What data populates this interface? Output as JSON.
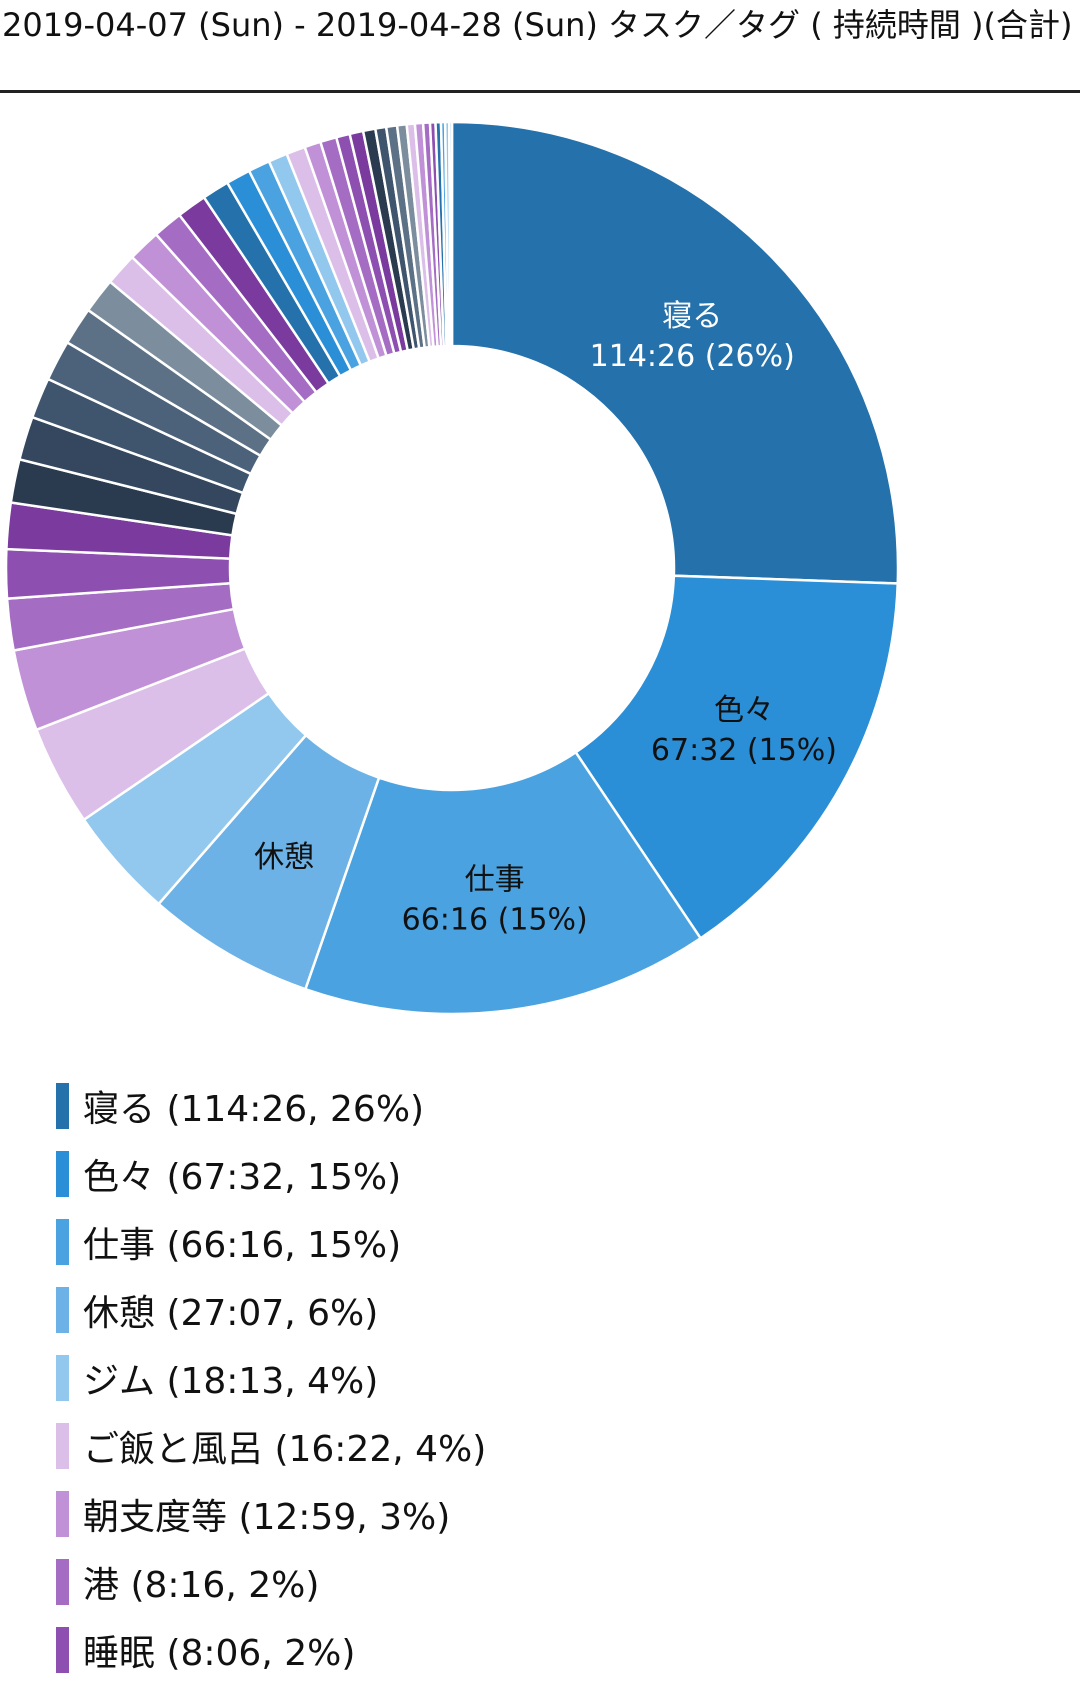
{
  "header": {
    "title": "2019-04-07 (Sun) - 2019-04-28 (Sun) タスク／タグ ( 持続時間 )(合計)"
  },
  "chart_data": {
    "type": "pie",
    "variant": "donut",
    "title": "2019-04-07 (Sun) - 2019-04-28 (Sun) タスク／タグ ( 持続時間 )(合計)",
    "legend_position": "bottom",
    "slices": [
      {
        "label": "寝る",
        "value": 26,
        "duration": "114:26",
        "percent": "26%",
        "color": "#2471ab",
        "show_label": true,
        "show_value": true,
        "label_color": "#ffffff"
      },
      {
        "label": "色々",
        "value": 15.3,
        "duration": "67:32",
        "percent": "15%",
        "color": "#2a8fd6",
        "show_label": true,
        "show_value": true,
        "label_color": "#111111"
      },
      {
        "label": "仕事",
        "value": 15.0,
        "duration": "66:16",
        "percent": "15%",
        "color": "#4aa3e0",
        "show_label": true,
        "show_value": true,
        "label_color": "#111111"
      },
      {
        "label": "休憩",
        "value": 6.2,
        "duration": "27:07",
        "percent": "6%",
        "color": "#6cb2e6",
        "show_label": true,
        "show_value": false,
        "label_color": "#111111"
      },
      {
        "label": "ジム",
        "value": 4.1,
        "duration": "18:13",
        "percent": "4%",
        "color": "#93c8ee",
        "show_label": false
      },
      {
        "label": "ご飯と風呂",
        "value": 3.7,
        "duration": "16:22",
        "percent": "4%",
        "color": "#dcbfe9",
        "show_label": false
      },
      {
        "label": "朝支度等",
        "value": 3.0,
        "duration": "12:59",
        "percent": "3%",
        "color": "#c191d8",
        "show_label": false
      },
      {
        "label": "港",
        "value": 1.9,
        "duration": "8:16",
        "percent": "2%",
        "color": "#a56cc4",
        "show_label": false
      },
      {
        "label": "睡眠",
        "value": 1.8,
        "duration": "8:06",
        "percent": "2%",
        "color": "#8d4fb0",
        "show_label": false
      },
      {
        "value": 1.7,
        "color": "#7a3a9e"
      },
      {
        "value": 1.6,
        "color": "#2b3b4f"
      },
      {
        "value": 1.6,
        "color": "#34475e"
      },
      {
        "value": 1.5,
        "color": "#3f546d"
      },
      {
        "value": 1.5,
        "color": "#4c627b"
      },
      {
        "value": 1.4,
        "color": "#5d7186"
      },
      {
        "value": 1.3,
        "color": "#7c8e9e"
      },
      {
        "value": 1.2,
        "color": "#dcbfe9"
      },
      {
        "value": 1.2,
        "color": "#c191d8"
      },
      {
        "value": 1.1,
        "color": "#a56cc4"
      },
      {
        "value": 1.1,
        "color": "#7a3a9e"
      },
      {
        "value": 1.0,
        "color": "#2471ab"
      },
      {
        "value": 0.9,
        "color": "#2a8fd6"
      },
      {
        "value": 0.8,
        "color": "#4aa3e0"
      },
      {
        "value": 0.7,
        "color": "#93c8ee"
      },
      {
        "value": 0.7,
        "color": "#dcbfe9"
      },
      {
        "value": 0.6,
        "color": "#c191d8"
      },
      {
        "value": 0.6,
        "color": "#a56cc4"
      },
      {
        "value": 0.5,
        "color": "#8d4fb0"
      },
      {
        "value": 0.5,
        "color": "#7a3a9e"
      },
      {
        "value": 0.45,
        "color": "#2b3b4f"
      },
      {
        "value": 0.4,
        "color": "#3f546d"
      },
      {
        "value": 0.4,
        "color": "#5d7186"
      },
      {
        "value": 0.35,
        "color": "#7c8e9e"
      },
      {
        "value": 0.3,
        "color": "#dcbfe9"
      },
      {
        "value": 0.3,
        "color": "#c191d8"
      },
      {
        "value": 0.25,
        "color": "#a56cc4"
      },
      {
        "value": 0.2,
        "color": "#8d4fb0"
      },
      {
        "value": 0.2,
        "color": "#2471ab"
      },
      {
        "value": 0.15,
        "color": "#4aa3e0"
      },
      {
        "value": 0.15,
        "color": "#93c8ee"
      },
      {
        "value": 0.1,
        "color": "#6cb2e6"
      }
    ]
  },
  "legend": [
    {
      "text": "寝る (114:26, 26%)",
      "color": "#2471ab"
    },
    {
      "text": "色々 (67:32, 15%)",
      "color": "#2a8fd6"
    },
    {
      "text": "仕事 (66:16, 15%)",
      "color": "#4aa3e0"
    },
    {
      "text": "休憩 (27:07, 6%)",
      "color": "#6cb2e6"
    },
    {
      "text": "ジム (18:13, 4%)",
      "color": "#93c8ee"
    },
    {
      "text": "ご飯と風呂 (16:22, 4%)",
      "color": "#dcbfe9"
    },
    {
      "text": "朝支度等 (12:59, 3%)",
      "color": "#c191d8"
    },
    {
      "text": "港 (8:16, 2%)",
      "color": "#a56cc4"
    },
    {
      "text": "睡眠 (8:06, 2%)",
      "color": "#8d4fb0"
    }
  ]
}
